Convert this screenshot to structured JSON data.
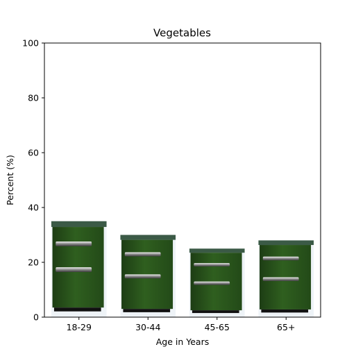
{
  "chart_data": {
    "type": "bar",
    "title": "Vegetables",
    "xlabel": "Age in Years",
    "ylabel": "Percent (%)",
    "categories": [
      "18-29",
      "30-44",
      "45-65",
      "65+"
    ],
    "values": [
      35,
      30,
      25,
      28
    ],
    "ylim": [
      0,
      100
    ],
    "yticks": [
      0,
      20,
      40,
      60,
      80,
      100
    ],
    "grid": false,
    "bar_style": "pictorial cabinet image",
    "bar_color": "#2f5f1f"
  }
}
